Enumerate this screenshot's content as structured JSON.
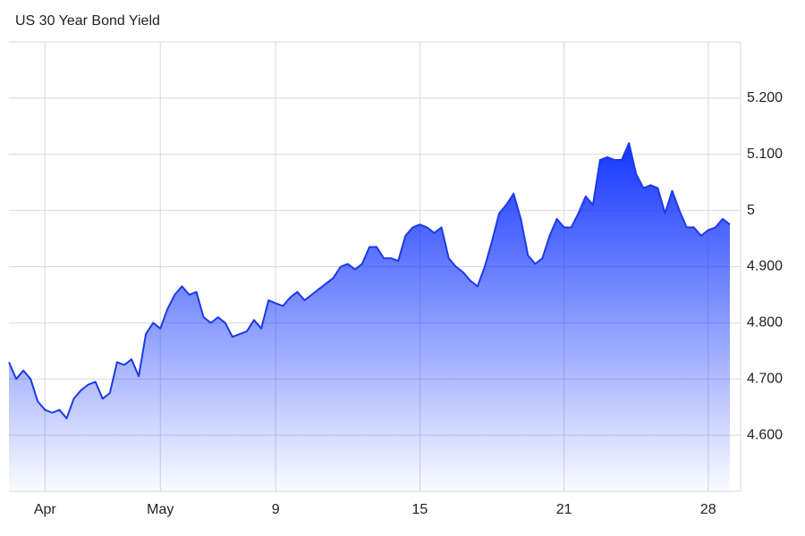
{
  "chart_data": {
    "type": "area",
    "title": "US 30 Year Bond Yield",
    "categories": [
      null,
      null,
      null,
      null,
      null,
      "Apr",
      null,
      null,
      null,
      null,
      null,
      null,
      null,
      null,
      null,
      null,
      null,
      null,
      null,
      null,
      null,
      "May",
      null,
      null,
      null,
      null,
      null,
      null,
      null,
      null,
      null,
      null,
      null,
      null,
      null,
      null,
      null,
      "9",
      null,
      null,
      null,
      null,
      null,
      null,
      null,
      null,
      null,
      null,
      null,
      null,
      null,
      null,
      null,
      null,
      null,
      null,
      null,
      "15",
      null,
      null,
      null,
      null,
      null,
      null,
      null,
      null,
      null,
      null,
      null,
      null,
      null,
      null,
      null,
      null,
      null,
      null,
      null,
      "21",
      null,
      null,
      null,
      null,
      null,
      null,
      null,
      null,
      null,
      null,
      null,
      null,
      null,
      null,
      null,
      null,
      null,
      null,
      null,
      "28",
      null,
      null,
      null
    ],
    "values": [
      4.73,
      4.7,
      4.715,
      4.7,
      4.66,
      4.645,
      4.64,
      4.645,
      4.63,
      4.665,
      4.68,
      4.69,
      4.695,
      4.665,
      4.675,
      4.73,
      4.725,
      4.735,
      4.705,
      4.78,
      4.8,
      4.79,
      4.825,
      4.85,
      4.865,
      4.85,
      4.855,
      4.81,
      4.8,
      4.81,
      4.8,
      4.775,
      4.78,
      4.785,
      4.805,
      4.79,
      4.84,
      4.835,
      4.83,
      4.845,
      4.855,
      4.84,
      4.85,
      4.86,
      4.87,
      4.88,
      4.9,
      4.905,
      4.895,
      4.905,
      4.935,
      4.935,
      4.915,
      4.915,
      4.91,
      4.955,
      4.97,
      4.975,
      4.97,
      4.96,
      4.97,
      4.915,
      4.9,
      4.89,
      4.875,
      4.865,
      4.9,
      4.945,
      4.995,
      5.01,
      5.03,
      4.985,
      4.92,
      4.905,
      4.915,
      4.955,
      4.985,
      4.97,
      4.97,
      4.995,
      5.025,
      5.01,
      5.09,
      5.095,
      5.09,
      5.09,
      5.12,
      5.065,
      5.04,
      5.045,
      5.04,
      4.995,
      5.035,
      5.0,
      4.97,
      4.97,
      4.955,
      4.965,
      4.97,
      4.985,
      4.975
    ],
    "color": "#1c3ae8",
    "ylim": [
      4.5,
      5.3
    ],
    "yticks": [
      {
        "value": 4.6,
        "label": "4.600"
      },
      {
        "value": 4.7,
        "label": "4.700"
      },
      {
        "value": 4.8,
        "label": "4.800"
      },
      {
        "value": 4.9,
        "label": "4.900"
      },
      5,
      {
        "value": 5.1,
        "label": "5.100"
      },
      {
        "value": 5.2,
        "label": "5.200"
      }
    ],
    "grid": true
  }
}
